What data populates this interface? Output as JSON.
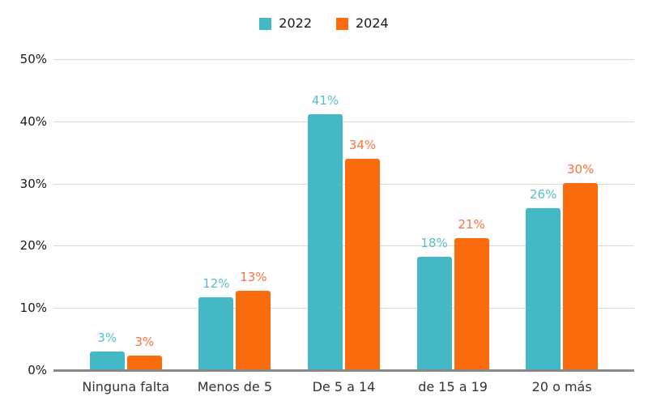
{
  "chart_data": {
    "type": "bar",
    "title": "",
    "categories": [
      "Ninguna falta",
      "Menos de 5",
      "De 5 a 14",
      "de 15 a 19",
      "20 o más"
    ],
    "series": [
      {
        "name": "2022",
        "color": "#44B8C4",
        "label_color": "#59BEC8",
        "values": [
          3,
          12,
          41,
          18,
          26
        ],
        "value_labels": [
          "3%",
          "12%",
          "41%",
          "18%",
          "26%"
        ],
        "bar_heights_pct": [
          3.0,
          11.7,
          41.2,
          18.2,
          26.0
        ]
      },
      {
        "name": "2024",
        "color": "#FB6C0F",
        "label_color": "#F9723F",
        "values": [
          3,
          13,
          34,
          21,
          30
        ],
        "value_labels": [
          "3%",
          "13%",
          "34%",
          "21%",
          "30%"
        ],
        "bar_heights_pct": [
          2.4,
          12.7,
          34.0,
          21.2,
          30.1
        ]
      }
    ],
    "xlabel": "",
    "ylabel": "",
    "y_axis": {
      "min": 0,
      "max": 50,
      "tick_step": 10,
      "tick_labels": [
        "0%",
        "10%",
        "20%",
        "30%",
        "40%",
        "50%"
      ]
    },
    "grid": true,
    "legend_position": "top",
    "colors": {
      "gridline": "#d9d9d9",
      "axis_baseline": "#8a8a8a",
      "tick_label": "#1a1a1a",
      "category_label": "#333333",
      "legend_label": "#1a1a1a",
      "background": "#ffffff"
    }
  }
}
